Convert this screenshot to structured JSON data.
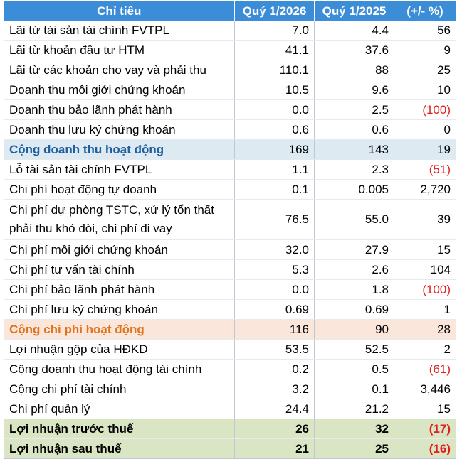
{
  "header": {
    "col_item": "Chỉ tiêu",
    "col_q1_2026": "Quý 1/2026",
    "col_q1_2025": "Quý 1/2025",
    "col_change": "(+/- %)"
  },
  "rows": [
    {
      "item": "Lãi từ tài sản tài chính FVTPL",
      "q2026": "7.0",
      "q2025": "4.4",
      "change": "56"
    },
    {
      "item": "Lãi từ khoản đầu tư HTM",
      "q2026": "41.1",
      "q2025": "37.6",
      "change": "9"
    },
    {
      "item": "Lãi từ các khoản cho vay và phải thu",
      "q2026": "110.1",
      "q2025": "88",
      "change": "25"
    },
    {
      "item": "Doanh thu môi giới chứng khoán",
      "q2026": "10.5",
      "q2025": "9.6",
      "change": "10"
    },
    {
      "item": "Doanh thu bảo lãnh phát hành",
      "q2026": "0.0",
      "q2025": "2.5",
      "change": "(100)"
    },
    {
      "item": "Doanh thu lưu ký chứng khoán",
      "q2026": "0.6",
      "q2025": "0.6",
      "change": "0"
    },
    {
      "item": "Cộng doanh thu hoạt động",
      "q2026": "169",
      "q2025": "143",
      "change": "19"
    },
    {
      "item": "Lỗ tài sản tài chính FVTPL",
      "q2026": "1.1",
      "q2025": "2.3",
      "change": "(51)"
    },
    {
      "item": "Chi phí hoạt động tự doanh",
      "q2026": "0.1",
      "q2025": "0.005",
      "change": "2,720"
    },
    {
      "item": "Chi phí dự phòng TSTC, xử lý tổn thất phải thu khó đòi, chi phí đi vay",
      "q2026": "76.5",
      "q2025": "55.0",
      "change": "39"
    },
    {
      "item": "Chi phí môi giới chứng khoán",
      "q2026": "32.0",
      "q2025": "27.9",
      "change": "15"
    },
    {
      "item": "Chi phí tư vấn tài chính",
      "q2026": "5.3",
      "q2025": "2.6",
      "change": "104"
    },
    {
      "item": "Chi phí bảo lãnh phát hành",
      "q2026": "0.0",
      "q2025": "1.8",
      "change": "(100)"
    },
    {
      "item": "Chi phí lưu ký chứng khoán",
      "q2026": "0.69",
      "q2025": "0.69",
      "change": "1"
    },
    {
      "item": "Cộng chi phí hoạt động",
      "q2026": "116",
      "q2025": "90",
      "change": "28"
    },
    {
      "item": "Lợi nhuận gộp của HĐKD",
      "q2026": "53.5",
      "q2025": "52.5",
      "change": "2"
    },
    {
      "item": "Cộng doanh thu hoạt động tài chính",
      "q2026": "0.2",
      "q2025": "0.5",
      "change": "(61)"
    },
    {
      "item": "Cộng chi phí tài chính",
      "q2026": "3.2",
      "q2025": "0.1",
      "change": "3,446"
    },
    {
      "item": "Chi phí quản lý",
      "q2026": "24.4",
      "q2025": "21.2",
      "change": "15"
    },
    {
      "item": "Lợi nhuận trước thuế",
      "q2026": "26",
      "q2025": "32",
      "change": "(17)"
    },
    {
      "item": "Lợi nhuận sau thuế",
      "q2026": "21",
      "q2025": "25",
      "change": "(16)"
    }
  ],
  "colors": {
    "header_bg": "#3b8dd8",
    "subtotal_revenue_bg": "#ddeaf2",
    "subtotal_revenue_text": "#1f5f9e",
    "subtotal_cost_bg": "#fbe6dc",
    "subtotal_cost_text": "#e0741c",
    "profit_bg": "#d9e5c3",
    "negative_text": "#e01e1e"
  }
}
